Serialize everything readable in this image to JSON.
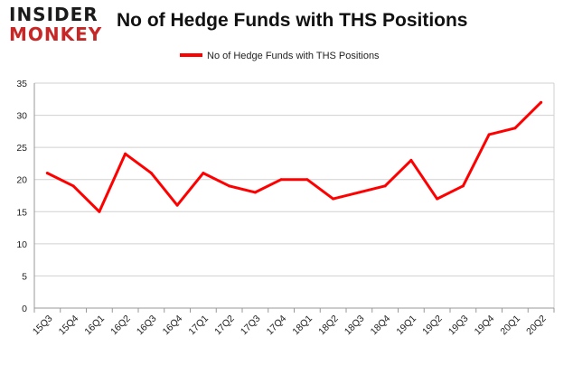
{
  "brand": {
    "line1": "INSIDER",
    "line2": "MONKEY"
  },
  "chart_data": {
    "type": "line",
    "title": "No of Hedge Funds with THS Positions",
    "xlabel": "",
    "ylabel": "",
    "categories": [
      "15Q3",
      "15Q4",
      "16Q1",
      "16Q2",
      "16Q3",
      "16Q4",
      "17Q1",
      "17Q2",
      "17Q3",
      "17Q4",
      "18Q1",
      "18Q2",
      "18Q3",
      "18Q4",
      "19Q1",
      "19Q2",
      "19Q3",
      "19Q4",
      "20Q1",
      "20Q2"
    ],
    "series": [
      {
        "name": "No of Hedge Funds with THS Positions",
        "color": "#ff0000",
        "values": [
          21,
          19,
          15,
          24,
          21,
          16,
          21,
          19,
          18,
          20,
          20,
          17,
          18,
          19,
          23,
          17,
          19,
          27,
          28,
          32
        ]
      }
    ],
    "ylim": [
      0,
      35
    ],
    "yticks": [
      0,
      5,
      10,
      15,
      20,
      25,
      30,
      35
    ],
    "grid": true,
    "legend_position": "top-center"
  }
}
